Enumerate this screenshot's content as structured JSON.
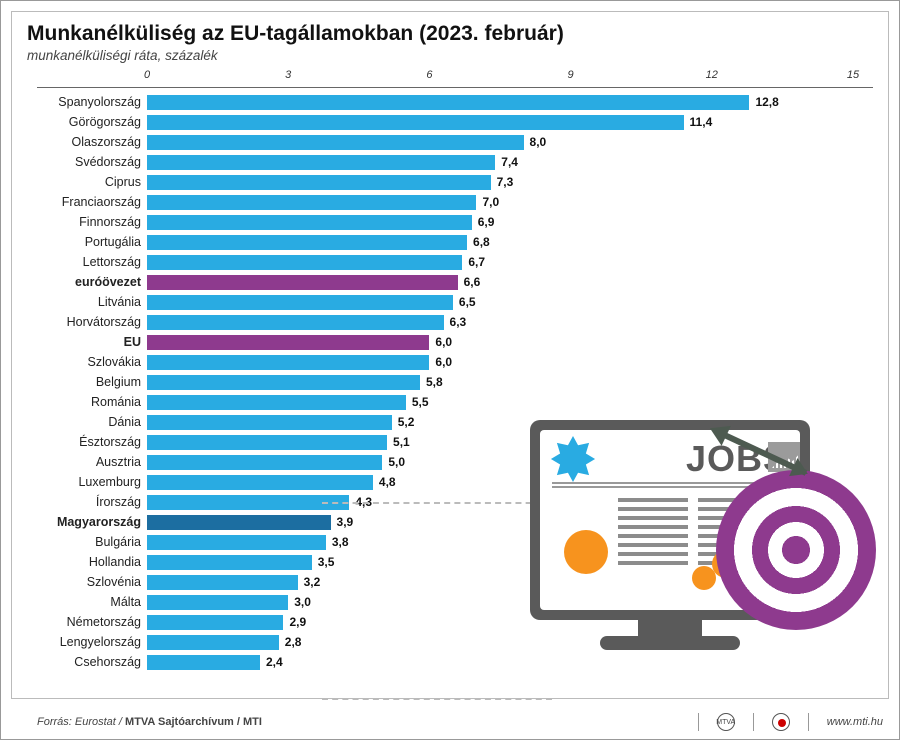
{
  "title": "Munkanélküliség az EU-tagállamokban (2023. február)",
  "subtitle": "munkanélküliségi ráta, százalék",
  "chart": {
    "type": "bar",
    "x_max": 15,
    "ticks": [
      0,
      3,
      6,
      9,
      12,
      15
    ],
    "bar_color_default": "#29abe2",
    "bar_color_special": "#8e3a8e",
    "bar_color_hungary": "#1c6ea1",
    "background_color": "#ffffff",
    "axis_line_color": "#666666",
    "rows": [
      {
        "label": "Spanyolország",
        "value": 12.8,
        "disp": "12,8",
        "style": "default"
      },
      {
        "label": "Görögország",
        "value": 11.4,
        "disp": "11,4",
        "style": "default"
      },
      {
        "label": "Olaszország",
        "value": 8.0,
        "disp": "8,0",
        "style": "default"
      },
      {
        "label": "Svédország",
        "value": 7.4,
        "disp": "7,4",
        "style": "default"
      },
      {
        "label": "Ciprus",
        "value": 7.3,
        "disp": "7,3",
        "style": "default"
      },
      {
        "label": "Franciaország",
        "value": 7.0,
        "disp": "7,0",
        "style": "default"
      },
      {
        "label": "Finnország",
        "value": 6.9,
        "disp": "6,9",
        "style": "default"
      },
      {
        "label": "Portugália",
        "value": 6.8,
        "disp": "6,8",
        "style": "default"
      },
      {
        "label": "Lettország",
        "value": 6.7,
        "disp": "6,7",
        "style": "default"
      },
      {
        "label": "euróövezet",
        "value": 6.6,
        "disp": "6,6",
        "style": "special",
        "bold": true
      },
      {
        "label": "Litvánia",
        "value": 6.5,
        "disp": "6,5",
        "style": "default"
      },
      {
        "label": "Horvátország",
        "value": 6.3,
        "disp": "6,3",
        "style": "default"
      },
      {
        "label": "EU",
        "value": 6.0,
        "disp": "6,0",
        "style": "special",
        "bold": true
      },
      {
        "label": "Szlovákia",
        "value": 6.0,
        "disp": "6,0",
        "style": "default"
      },
      {
        "label": "Belgium",
        "value": 5.8,
        "disp": "5,8",
        "style": "default"
      },
      {
        "label": "Románia",
        "value": 5.5,
        "disp": "5,5",
        "style": "default"
      },
      {
        "label": "Dánia",
        "value": 5.2,
        "disp": "5,2",
        "style": "default"
      },
      {
        "label": "Észtország",
        "value": 5.1,
        "disp": "5,1",
        "style": "default"
      },
      {
        "label": "Ausztria",
        "value": 5.0,
        "disp": "5,0",
        "style": "default"
      },
      {
        "label": "Luxemburg",
        "value": 4.8,
        "disp": "4,8",
        "style": "default"
      },
      {
        "label": "Írország",
        "value": 4.3,
        "disp": "4,3",
        "style": "default"
      },
      {
        "label": "Magyarország",
        "value": 3.9,
        "disp": "3,9",
        "style": "hungary",
        "bold": true
      },
      {
        "label": "Bulgária",
        "value": 3.8,
        "disp": "3,8",
        "style": "default"
      },
      {
        "label": "Hollandia",
        "value": 3.5,
        "disp": "3,5",
        "style": "default"
      },
      {
        "label": "Szlovénia",
        "value": 3.2,
        "disp": "3,2",
        "style": "default"
      },
      {
        "label": "Málta",
        "value": 3.0,
        "disp": "3,0",
        "style": "default"
      },
      {
        "label": "Németország",
        "value": 2.9,
        "disp": "2,9",
        "style": "default"
      },
      {
        "label": "Lengyelország",
        "value": 2.8,
        "disp": "2,8",
        "style": "default"
      },
      {
        "label": "Csehország",
        "value": 2.4,
        "disp": "2,4",
        "style": "default"
      }
    ]
  },
  "illustration": {
    "jobs_text": "JOBS",
    "colors": {
      "monitor": "#5a5a5a",
      "star": "#29abe2",
      "bulb": "#f7931e",
      "gear": "#f7931e",
      "target": "#8e3a8e",
      "arrow": "#4d5a50"
    }
  },
  "footer": {
    "source_prefix": "Forrás: Eurostat / ",
    "source_bold": "MTVA Sajtóarchívum / MTI",
    "url": "www.mti.hu"
  }
}
